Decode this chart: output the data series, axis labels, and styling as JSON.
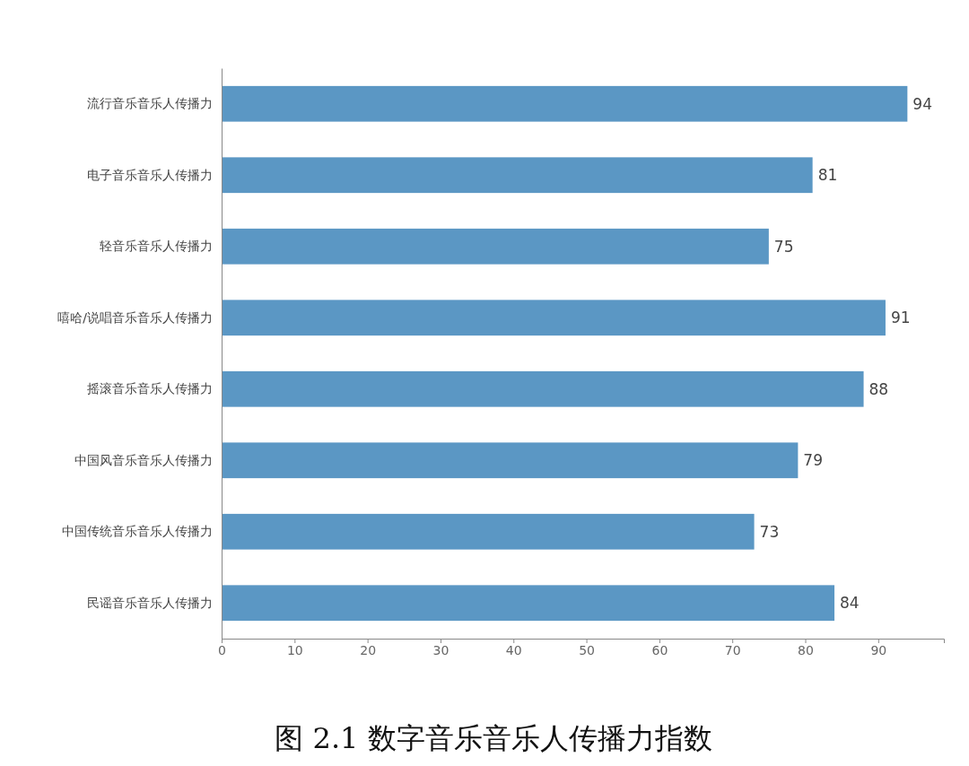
{
  "chart_data": {
    "type": "bar",
    "orientation": "horizontal",
    "title": "图 2.1 数字音乐音乐人传播力指数",
    "categories": [
      "流行音乐音乐人传播力",
      "电子音乐音乐人传播力",
      "轻音乐音乐人传播力",
      "嘻哈/说唱音乐音乐人传播力",
      "摇滚音乐音乐人传播力",
      "中国风音乐音乐人传播力",
      "中国传统音乐音乐人传播力",
      "民谣音乐音乐人传播力"
    ],
    "values": [
      94,
      81,
      75,
      91,
      88,
      79,
      73,
      84
    ],
    "color": "#5b97c4",
    "xlim": [
      0,
      99
    ],
    "xticks": [
      0,
      10,
      20,
      30,
      40,
      50,
      60,
      70,
      80,
      90
    ],
    "data_labels": true,
    "grid": false
  }
}
